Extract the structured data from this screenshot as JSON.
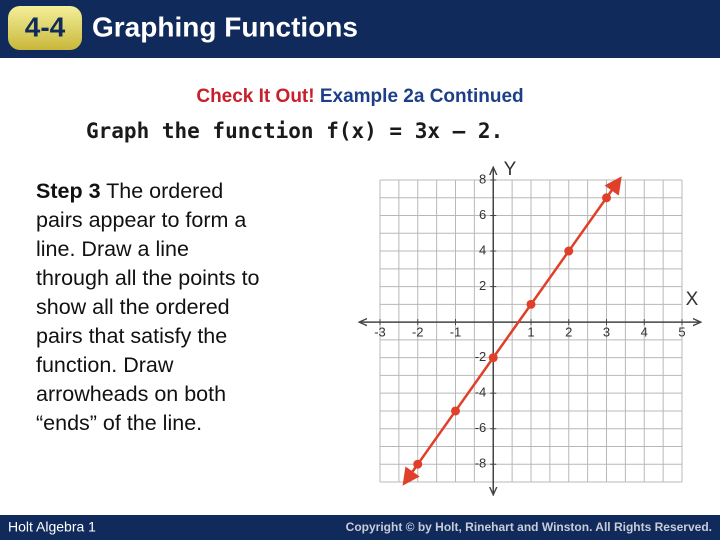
{
  "header": {
    "badge": "4-4",
    "title": "Graphing Functions"
  },
  "subtitle": {
    "lead": "Check It Out!",
    "rest": "Example 2a Continued"
  },
  "prompt": "Graph the function f(x) = 3x – 2.",
  "step": {
    "label": "Step 3",
    "lines": [
      "The ordered",
      "pairs appear to form a",
      "line. Draw a line",
      "through all the points to",
      "show all the ordered",
      "pairs that satisfy the",
      "function. Draw",
      "arrowheads on both",
      "“ends” of the line."
    ]
  },
  "chart_data": {
    "type": "line",
    "x": [
      -2,
      -1,
      0,
      1,
      2,
      3
    ],
    "values": [
      -8,
      -5,
      -2,
      1,
      4,
      7
    ],
    "color": "#e0402a",
    "xlim": [
      -3,
      5
    ],
    "ylim": [
      -9,
      8
    ],
    "xticks": [
      -3,
      -2,
      -1,
      1,
      2,
      3,
      4,
      5
    ],
    "yticks": [
      -8,
      -6,
      -4,
      -2,
      2,
      4,
      6,
      8
    ],
    "xlabel": "X",
    "ylabel": "Y",
    "grid": true
  },
  "footer": {
    "left": "Holt Algebra 1",
    "right": "Copyright © by Holt, Rinehart and Winston. All Rights Reserved."
  }
}
